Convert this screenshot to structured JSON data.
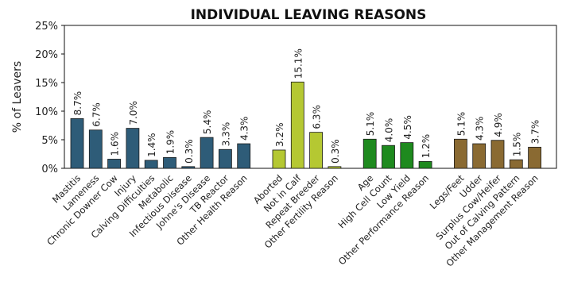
{
  "chart_data": {
    "type": "bar",
    "title": "INDIVIDUAL LEAVING REASONS",
    "ylabel": "% of Leavers",
    "xlabel": "",
    "ylim": [
      0,
      25
    ],
    "yticks": [
      "0%",
      "5%",
      "10%",
      "15%",
      "20%",
      "25%"
    ],
    "ytick_values": [
      0,
      5,
      10,
      15,
      20,
      25
    ],
    "grid": false,
    "legend": "none",
    "groups": [
      {
        "color": "#2e5c78",
        "categories": [
          "Mastitis",
          "Lameness",
          "Chronic Downer Cow",
          "Injury",
          "Calving Difficulties",
          "Metabolic",
          "Infectious Disease",
          "Johne's Disease",
          "TB Reactor",
          "Other Health Reason"
        ],
        "values": [
          8.7,
          6.7,
          1.6,
          7.0,
          1.4,
          1.9,
          0.3,
          5.4,
          3.3,
          4.3
        ],
        "labels": [
          "8.7%",
          "6.7%",
          "1.6%",
          "7.0%",
          "1.4%",
          "1.9%",
          "0.3%",
          "5.4%",
          "3.3%",
          "4.3%"
        ]
      },
      {
        "color": "#b5c832",
        "categories": [
          "Aborted",
          "Not in Calf",
          "Repeat Breeder",
          "Other Fertility Reason"
        ],
        "values": [
          3.2,
          15.1,
          6.3,
          0.3
        ],
        "labels": [
          "3.2%",
          "15.1%",
          "6.3%",
          "0.3%"
        ]
      },
      {
        "color": "#1e8a1e",
        "categories": [
          "Age",
          "High Cell Count",
          "Low Yield",
          "Other Performance Reason"
        ],
        "values": [
          5.1,
          4.0,
          4.5,
          1.2
        ],
        "labels": [
          "5.1%",
          "4.0%",
          "4.5%",
          "1.2%"
        ]
      },
      {
        "color": "#8a6a32",
        "categories": [
          "Legs/Feet",
          "Udder",
          "Surplus Cow/Heifer",
          "Out of Calving Pattern",
          "Other Management Reason"
        ],
        "values": [
          5.1,
          4.3,
          4.9,
          1.5,
          3.7
        ],
        "labels": [
          "5.1%",
          "4.3%",
          "4.9%",
          "1.5%",
          "3.7%"
        ]
      }
    ]
  }
}
